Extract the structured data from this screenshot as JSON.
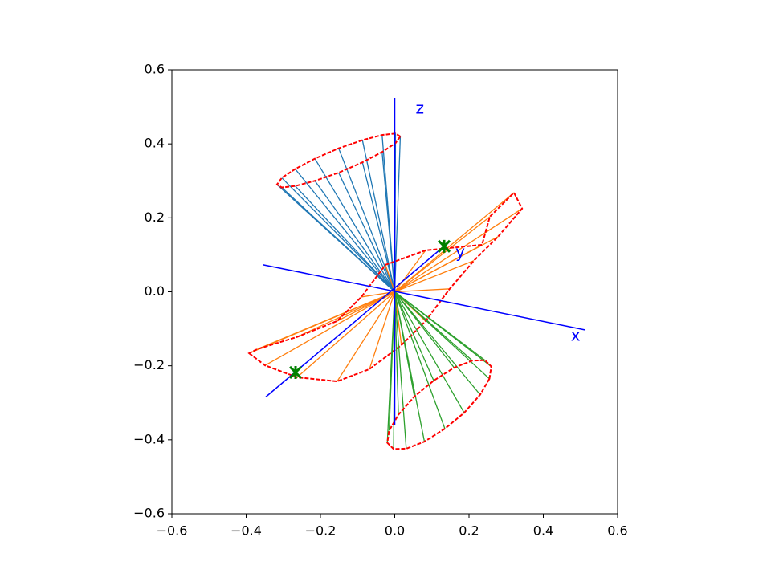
{
  "chart_data": {
    "type": "fan",
    "xlim": [
      -0.6,
      0.6
    ],
    "ylim": [
      -0.6,
      0.6
    ],
    "xticks": [
      {
        "value": -0.6,
        "label": "−0.6"
      },
      {
        "value": -0.4,
        "label": "−0.4"
      },
      {
        "value": -0.2,
        "label": "−0.2"
      },
      {
        "value": 0,
        "label": "0.0"
      },
      0.2,
      0.4,
      0.6
    ],
    "yticks": [
      {
        "value": -0.6,
        "label": "−0.6"
      },
      {
        "value": -0.4,
        "label": "−0.4"
      },
      {
        "value": -0.2,
        "label": "−0.2"
      },
      {
        "value": 0,
        "label": "0.0"
      },
      0.2,
      0.4,
      0.6
    ],
    "ring_color": "#ff0000",
    "fans": [
      {
        "color": "#1f77b4",
        "apex": [
          0,
          0
        ],
        "x": [
          0.015,
          0.002,
          -0.034,
          -0.087,
          -0.151,
          -0.215,
          -0.268,
          -0.304,
          -0.317,
          -0.304,
          -0.268,
          -0.215,
          -0.151,
          -0.087,
          -0.034,
          0.002
        ],
        "y": [
          0.42,
          0.428,
          0.424,
          0.41,
          0.388,
          0.36,
          0.332,
          0.308,
          0.29,
          0.282,
          0.286,
          0.3,
          0.322,
          0.35,
          0.378,
          0.402
        ]
      },
      {
        "color": "#ff7f0e",
        "apex": [
          0,
          0
        ],
        "x": [
          -0.392,
          -0.349,
          -0.263,
          -0.155,
          -0.068,
          0.018,
          0.083,
          0.148,
          0.213,
          0.278,
          0.343,
          0.321,
          0.256,
          0.235,
          0.083,
          -0.025,
          -0.09,
          -0.155,
          -0.263,
          -0.37
        ],
        "y": [
          -0.166,
          -0.199,
          -0.231,
          -0.242,
          -0.209,
          -0.144,
          -0.079,
          0.008,
          0.084,
          0.149,
          0.225,
          0.268,
          0.203,
          0.127,
          0.112,
          0.073,
          -0.014,
          -0.079,
          -0.122,
          -0.155
        ]
      },
      {
        "color": "#2ca02c",
        "apex": [
          0,
          0
        ],
        "x": [
          0.255,
          0.23,
          0.187,
          0.135,
          0.08,
          0.031,
          -0.003,
          -0.02,
          -0.015,
          0.01,
          0.053,
          0.105,
          0.16,
          0.209,
          0.243,
          0.26
        ],
        "y": [
          -0.235,
          -0.278,
          -0.327,
          -0.37,
          -0.405,
          -0.424,
          -0.425,
          -0.408,
          -0.375,
          -0.332,
          -0.283,
          -0.24,
          -0.205,
          -0.186,
          -0.185,
          -0.202
        ]
      }
    ],
    "axis_color": "#0000ff",
    "axis_lines": [
      {
        "label": "x",
        "x": [
          -0.354,
          0.513
        ],
        "y": [
          0.073,
          -0.103
        ]
      },
      {
        "label": "y",
        "x": [
          -0.347,
          0.142
        ],
        "y": [
          -0.284,
          0.131
        ]
      },
      {
        "label": "z",
        "x": [
          0,
          0
        ],
        "y": [
          -0.36,
          0.524
        ]
      }
    ],
    "markers": {
      "color": "#008000",
      "x": [
        -0.267,
        0.133
      ],
      "y": [
        -0.218,
        0.123
      ]
    }
  }
}
